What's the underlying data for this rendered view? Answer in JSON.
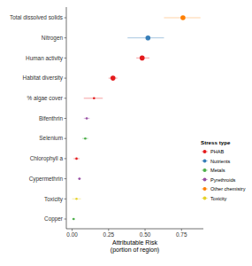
{
  "chart_data": {
    "type": "dot",
    "orientation": "horizontal",
    "categories": [
      "Total dissolved solids",
      "Nitrogen",
      "Human activity",
      "Habitat diversity",
      "% algae cover",
      "Bifenthrin",
      "Selenium",
      "Chlorophyll a",
      "Cypermethrin",
      "Toxicity",
      "Copper"
    ],
    "x_label": [
      "Attributable Risk",
      "(portion of region)"
    ],
    "xlim": [
      -0.04,
      0.9
    ],
    "xticks": [
      {
        "value": 0,
        "label": "0.00"
      },
      {
        "value": 0.25,
        "label": "0.25"
      },
      {
        "value": 0.5,
        "label": "0.50"
      },
      {
        "value": 0.75,
        "label": "0.75"
      }
    ],
    "grid": false,
    "legend": "right",
    "legend_title": "Stress type",
    "series": [
      {
        "name": "PHAB",
        "color": "#e41a1c",
        "values": [
          null,
          null,
          0.48,
          0.28,
          0.15,
          null,
          null,
          0.03,
          null,
          null,
          null
        ],
        "lower": [
          null,
          null,
          0.44,
          0.25,
          0.08,
          null,
          null,
          0.01,
          null,
          null,
          null
        ],
        "upper": [
          null,
          null,
          0.53,
          0.31,
          0.21,
          null,
          null,
          0.05,
          null,
          null,
          null
        ]
      },
      {
        "name": "Nutrients",
        "color": "#377eb8",
        "values": [
          null,
          0.52,
          null,
          null,
          null,
          null,
          null,
          null,
          null,
          null,
          null
        ],
        "lower": [
          null,
          0.38,
          null,
          null,
          null,
          null,
          null,
          null,
          null,
          null,
          null
        ],
        "upper": [
          null,
          0.63,
          null,
          null,
          null,
          null,
          null,
          null,
          null,
          null,
          null
        ]
      },
      {
        "name": "Metals",
        "color": "#4daf4a",
        "values": [
          null,
          null,
          null,
          null,
          null,
          null,
          0.09,
          null,
          null,
          null,
          0.01
        ],
        "lower": [
          null,
          null,
          null,
          null,
          null,
          null,
          0.07,
          null,
          null,
          null,
          0.0
        ],
        "upper": [
          null,
          null,
          null,
          null,
          null,
          null,
          0.11,
          null,
          null,
          null,
          0.02
        ]
      },
      {
        "name": "Pyrethroids",
        "color": "#984ea3",
        "values": [
          null,
          null,
          null,
          null,
          null,
          0.1,
          null,
          null,
          0.05,
          null,
          null
        ],
        "lower": [
          null,
          null,
          null,
          null,
          null,
          0.08,
          null,
          null,
          0.04,
          null,
          null
        ],
        "upper": [
          null,
          null,
          null,
          null,
          null,
          0.12,
          null,
          null,
          0.06,
          null,
          null
        ]
      },
      {
        "name": "Other chemistry",
        "color": "#ff7f00",
        "values": [
          0.76,
          null,
          null,
          null,
          null,
          null,
          null,
          null,
          null,
          null,
          null
        ],
        "lower": [
          0.63,
          null,
          null,
          null,
          null,
          null,
          null,
          null,
          null,
          null,
          null
        ],
        "upper": [
          0.88,
          null,
          null,
          null,
          null,
          null,
          null,
          null,
          null,
          null,
          null
        ]
      },
      {
        "name": "Toxicity",
        "color": "#e6d22a",
        "values": [
          null,
          null,
          null,
          null,
          null,
          null,
          null,
          null,
          null,
          0.03,
          null
        ],
        "lower": [
          null,
          null,
          null,
          null,
          null,
          null,
          null,
          null,
          null,
          0.0,
          null
        ],
        "upper": [
          null,
          null,
          null,
          null,
          null,
          null,
          null,
          null,
          null,
          0.06,
          null
        ]
      }
    ]
  }
}
